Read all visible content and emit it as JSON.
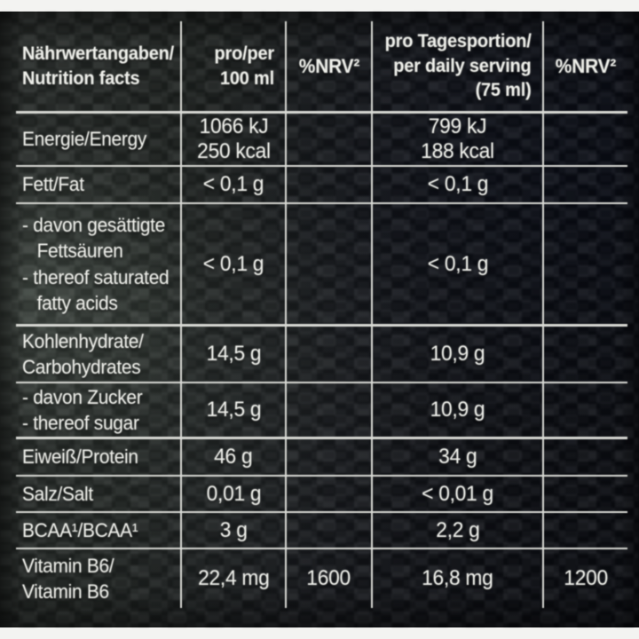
{
  "colors": {
    "text": "#edeee9",
    "line": "#d9dad5",
    "strip": "#f3f3f1",
    "photo_bg": "#101318"
  },
  "table": {
    "header": {
      "nutrition_facts": [
        "Nährwertangaben/",
        "Nutrition facts"
      ],
      "per_100": [
        "pro/per",
        "100 ml"
      ],
      "nrv_100": "%NRV²",
      "daily": [
        "pro Tagesportion/",
        "per daily serving",
        "(75 ml)"
      ],
      "nrv_daily": "%NRV²"
    },
    "rows": [
      {
        "label": [
          "Energie/Energy"
        ],
        "per100": [
          "1066 kJ",
          "250 kcal"
        ],
        "nrv100": "",
        "daily": [
          "799 kJ",
          "188 kcal"
        ],
        "nrvDaily": ""
      },
      {
        "label": [
          "Fett/Fat"
        ],
        "per100": "< 0,1 g",
        "nrv100": "",
        "daily": "< 0,1 g",
        "nrvDaily": ""
      },
      {
        "label": [
          "- davon gesättigte",
          "   Fettsäuren",
          "- thereof saturated",
          "   fatty acids"
        ],
        "per100": "< 0,1 g",
        "nrv100": "",
        "daily": "< 0,1 g",
        "nrvDaily": ""
      },
      {
        "label": [
          "Kohlenhydrate/",
          "Carbohydrates"
        ],
        "per100": "14,5 g",
        "nrv100": "",
        "daily": "10,9 g",
        "nrvDaily": ""
      },
      {
        "label": [
          "- davon Zucker",
          "- thereof sugar"
        ],
        "per100": "14,5 g",
        "nrv100": "",
        "daily": "10,9 g",
        "nrvDaily": ""
      },
      {
        "label": [
          "Eiweiß/Protein"
        ],
        "per100": "46 g",
        "nrv100": "",
        "daily": "34 g",
        "nrvDaily": ""
      },
      {
        "label": [
          "Salz/Salt"
        ],
        "per100": "0,01 g",
        "nrv100": "",
        "daily": "< 0,01 g",
        "nrvDaily": ""
      },
      {
        "label": [
          "BCAA¹/BCAA¹"
        ],
        "per100": "3 g",
        "nrv100": "",
        "daily": "2,2 g",
        "nrvDaily": ""
      },
      {
        "label": [
          "Vitamin B6/",
          "Vitamin B6"
        ],
        "per100": "22,4 mg",
        "nrv100": "1600",
        "daily": "16,8 mg",
        "nrvDaily": "1200"
      }
    ]
  }
}
